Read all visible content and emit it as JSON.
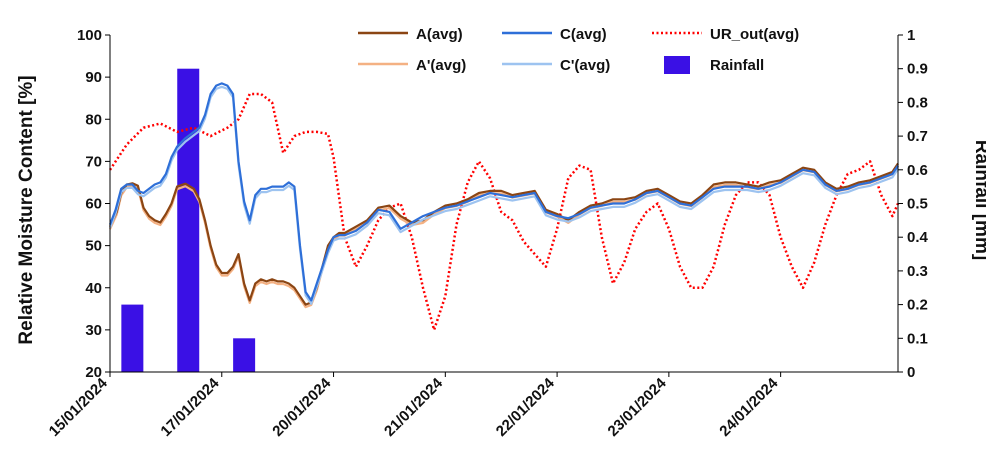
{
  "chart_data": {
    "type": "line",
    "title": "",
    "ylabel": "Relative Moisture Content [%]",
    "y2label": "Rainfall  [mm]",
    "xlabel": "",
    "ylim": [
      20,
      100
    ],
    "y2lim": [
      0,
      1
    ],
    "yticks": [
      20,
      30,
      40,
      50,
      60,
      70,
      80,
      90,
      100
    ],
    "y2ticks": [
      "0",
      "0.1",
      "0.2",
      "0.3",
      "0.4",
      "0.5",
      "0.6",
      "0.7",
      "0.8",
      "0.9",
      "1"
    ],
    "x_tick_labels": [
      "15/01/2024",
      "17/01/2024",
      "20/01/2024",
      "21/01/2024",
      "22/01/2024",
      "23/01/2024",
      "24/01/2024"
    ],
    "grid": false,
    "legend_position": "top",
    "colors": {
      "A": "#8B4513",
      "A_prime": "#F4B183",
      "C": "#2E6FD8",
      "C_prime": "#9DC3F0",
      "UR_out": "#FF0000",
      "Rainfall": "#3A10E5"
    },
    "series": [
      {
        "name": "A(avg)",
        "key": "A",
        "axis": "left",
        "style": "solid",
        "x": [
          0,
          0.12,
          0.2,
          0.3,
          0.4,
          0.5,
          0.6,
          0.7,
          0.8,
          0.9,
          1.0,
          1.1,
          1.2,
          1.35,
          1.5,
          1.6,
          1.7,
          1.8,
          1.9,
          2.0,
          2.1,
          2.2,
          2.3,
          2.4,
          2.5,
          2.6,
          2.7,
          2.8,
          2.9,
          3.0,
          3.1,
          3.2,
          3.3,
          3.4,
          3.5,
          3.6,
          3.7,
          3.8,
          3.9,
          4.0,
          4.1,
          4.2,
          4.4,
          4.6,
          4.8,
          5.0,
          5.2,
          5.4,
          5.6,
          5.8,
          6.0,
          6.2,
          6.4,
          6.6,
          6.8,
          7.0,
          7.2,
          7.4,
          7.6,
          7.8,
          8.0,
          8.2,
          8.4,
          8.6,
          8.8,
          9.0,
          9.2,
          9.4,
          9.6,
          9.8,
          10.0,
          10.2,
          10.4,
          10.6,
          10.8,
          11.0,
          11.2,
          11.4,
          11.6,
          11.8,
          12.0,
          12.2,
          12.4,
          12.6,
          12.8,
          13.0,
          13.2,
          13.4,
          13.6,
          13.8,
          14.0,
          14.1
        ],
        "values": [
          54.5,
          58,
          62.5,
          64.5,
          64.8,
          64.2,
          59,
          57,
          56,
          55.5,
          57.5,
          60,
          64,
          64.7,
          63.5,
          61,
          56,
          50,
          45.5,
          43.5,
          43.5,
          45,
          48,
          41,
          37,
          41,
          42,
          41.5,
          42,
          41.5,
          41.5,
          41,
          40,
          38,
          36,
          36.5,
          40,
          45,
          50,
          52,
          53,
          53,
          54.5,
          56,
          59,
          59.5,
          57,
          55.5,
          56,
          58,
          59.5,
          60,
          61,
          62.5,
          63,
          63,
          62,
          62.5,
          63,
          58.5,
          57.5,
          56,
          58,
          59.5,
          60,
          61,
          61,
          61.5,
          63,
          63.5,
          62,
          60.5,
          60,
          62,
          64.5,
          65,
          65,
          64.5,
          64,
          65,
          65.5,
          67,
          68.5,
          68,
          65,
          63.5,
          64,
          65,
          65.5,
          66.5,
          67.5,
          69.5
        ]
      },
      {
        "name": "C(avg)",
        "key": "C",
        "axis": "left",
        "style": "solid",
        "x": [
          0,
          0.1,
          0.2,
          0.3,
          0.4,
          0.5,
          0.6,
          0.7,
          0.8,
          0.9,
          1.0,
          1.1,
          1.2,
          1.35,
          1.5,
          1.6,
          1.7,
          1.8,
          1.9,
          2.0,
          2.1,
          2.2,
          2.3,
          2.4,
          2.5,
          2.6,
          2.7,
          2.8,
          2.9,
          3.0,
          3.1,
          3.2,
          3.3,
          3.4,
          3.5,
          3.6,
          3.7,
          3.8,
          3.9,
          4.0,
          4.1,
          4.2,
          4.4,
          4.6,
          4.8,
          5.0,
          5.2,
          5.4,
          5.6,
          5.8,
          6.0,
          6.2,
          6.4,
          6.6,
          6.8,
          7.0,
          7.2,
          7.4,
          7.6,
          7.8,
          8.0,
          8.2,
          8.4,
          8.6,
          8.8,
          9.0,
          9.2,
          9.4,
          9.6,
          9.8,
          10.0,
          10.2,
          10.4,
          10.6,
          10.8,
          11.0,
          11.2,
          11.4,
          11.6,
          11.8,
          12.0,
          12.2,
          12.4,
          12.6,
          12.8,
          13.0,
          13.2,
          13.4,
          13.6,
          13.8,
          14.0,
          14.1
        ],
        "values": [
          55,
          58.5,
          63.5,
          64.5,
          64.5,
          63,
          62.5,
          63.5,
          64.5,
          65,
          67,
          71,
          73.5,
          75.5,
          77,
          78,
          81,
          86,
          88,
          88.5,
          88,
          86,
          70,
          60.5,
          56,
          62,
          63.5,
          63.5,
          64,
          64,
          64,
          65,
          64,
          50,
          39,
          37,
          41,
          45,
          49,
          52,
          52.5,
          52.5,
          53.5,
          55.5,
          58.5,
          58,
          54,
          55.5,
          57,
          58,
          59,
          59.5,
          60.5,
          61.5,
          62.5,
          62,
          61.5,
          62,
          62.5,
          58,
          57,
          56.5,
          57.5,
          59,
          59.5,
          60,
          60,
          61,
          62.5,
          63,
          61.5,
          60,
          59.5,
          61.5,
          63.5,
          64,
          64,
          64,
          63.5,
          64,
          65,
          66.5,
          68,
          67.5,
          64.5,
          63,
          63.5,
          64.5,
          65,
          66,
          67,
          69
        ]
      },
      {
        "name": "A'(avg)",
        "key": "A_prime",
        "axis": "left",
        "style": "solid",
        "offset": -0.6,
        "ref": "A"
      },
      {
        "name": "C'(avg)",
        "key": "C_prime",
        "axis": "left",
        "style": "solid",
        "offset": -0.8,
        "ref": "C"
      },
      {
        "name": "UR_out(avg)",
        "key": "UR_out",
        "axis": "left",
        "style": "dotted",
        "x": [
          0,
          0.3,
          0.6,
          0.9,
          1.2,
          1.5,
          1.8,
          2.1,
          2.3,
          2.5,
          2.7,
          2.9,
          3.1,
          3.3,
          3.5,
          3.7,
          3.9,
          4.0,
          4.2,
          4.4,
          4.6,
          4.8,
          5.0,
          5.2,
          5.4,
          5.6,
          5.8,
          6.0,
          6.2,
          6.4,
          6.6,
          6.8,
          7.0,
          7.2,
          7.4,
          7.6,
          7.8,
          8.0,
          8.2,
          8.4,
          8.6,
          8.8,
          9.0,
          9.2,
          9.4,
          9.6,
          9.8,
          10.0,
          10.2,
          10.4,
          10.6,
          10.8,
          11.0,
          11.2,
          11.4,
          11.6,
          11.8,
          12.0,
          12.2,
          12.4,
          12.6,
          12.8,
          13.0,
          13.2,
          13.4,
          13.6,
          13.8,
          14.0,
          14.1
        ],
        "values": [
          68,
          74,
          78,
          79,
          77,
          78,
          76,
          78,
          80,
          86,
          86,
          84,
          72,
          76,
          77,
          77,
          76.5,
          71,
          52,
          45,
          50,
          56,
          59,
          60,
          52,
          40,
          30,
          38,
          55,
          65,
          70,
          66,
          58,
          56,
          51,
          48,
          45,
          54,
          66,
          69,
          68,
          52,
          41,
          46,
          54,
          58,
          60,
          54,
          45,
          40,
          40,
          45,
          55,
          62,
          65,
          65,
          62,
          52,
          45,
          40,
          46,
          55,
          62,
          67,
          68,
          70,
          62,
          57,
          60
        ]
      },
      {
        "name": "Rainfall",
        "key": "Rainfall",
        "axis": "right",
        "style": "bar",
        "x": [
          0.4,
          1.4,
          2.4
        ],
        "values": [
          0.2,
          0.9,
          0.1
        ]
      }
    ]
  }
}
